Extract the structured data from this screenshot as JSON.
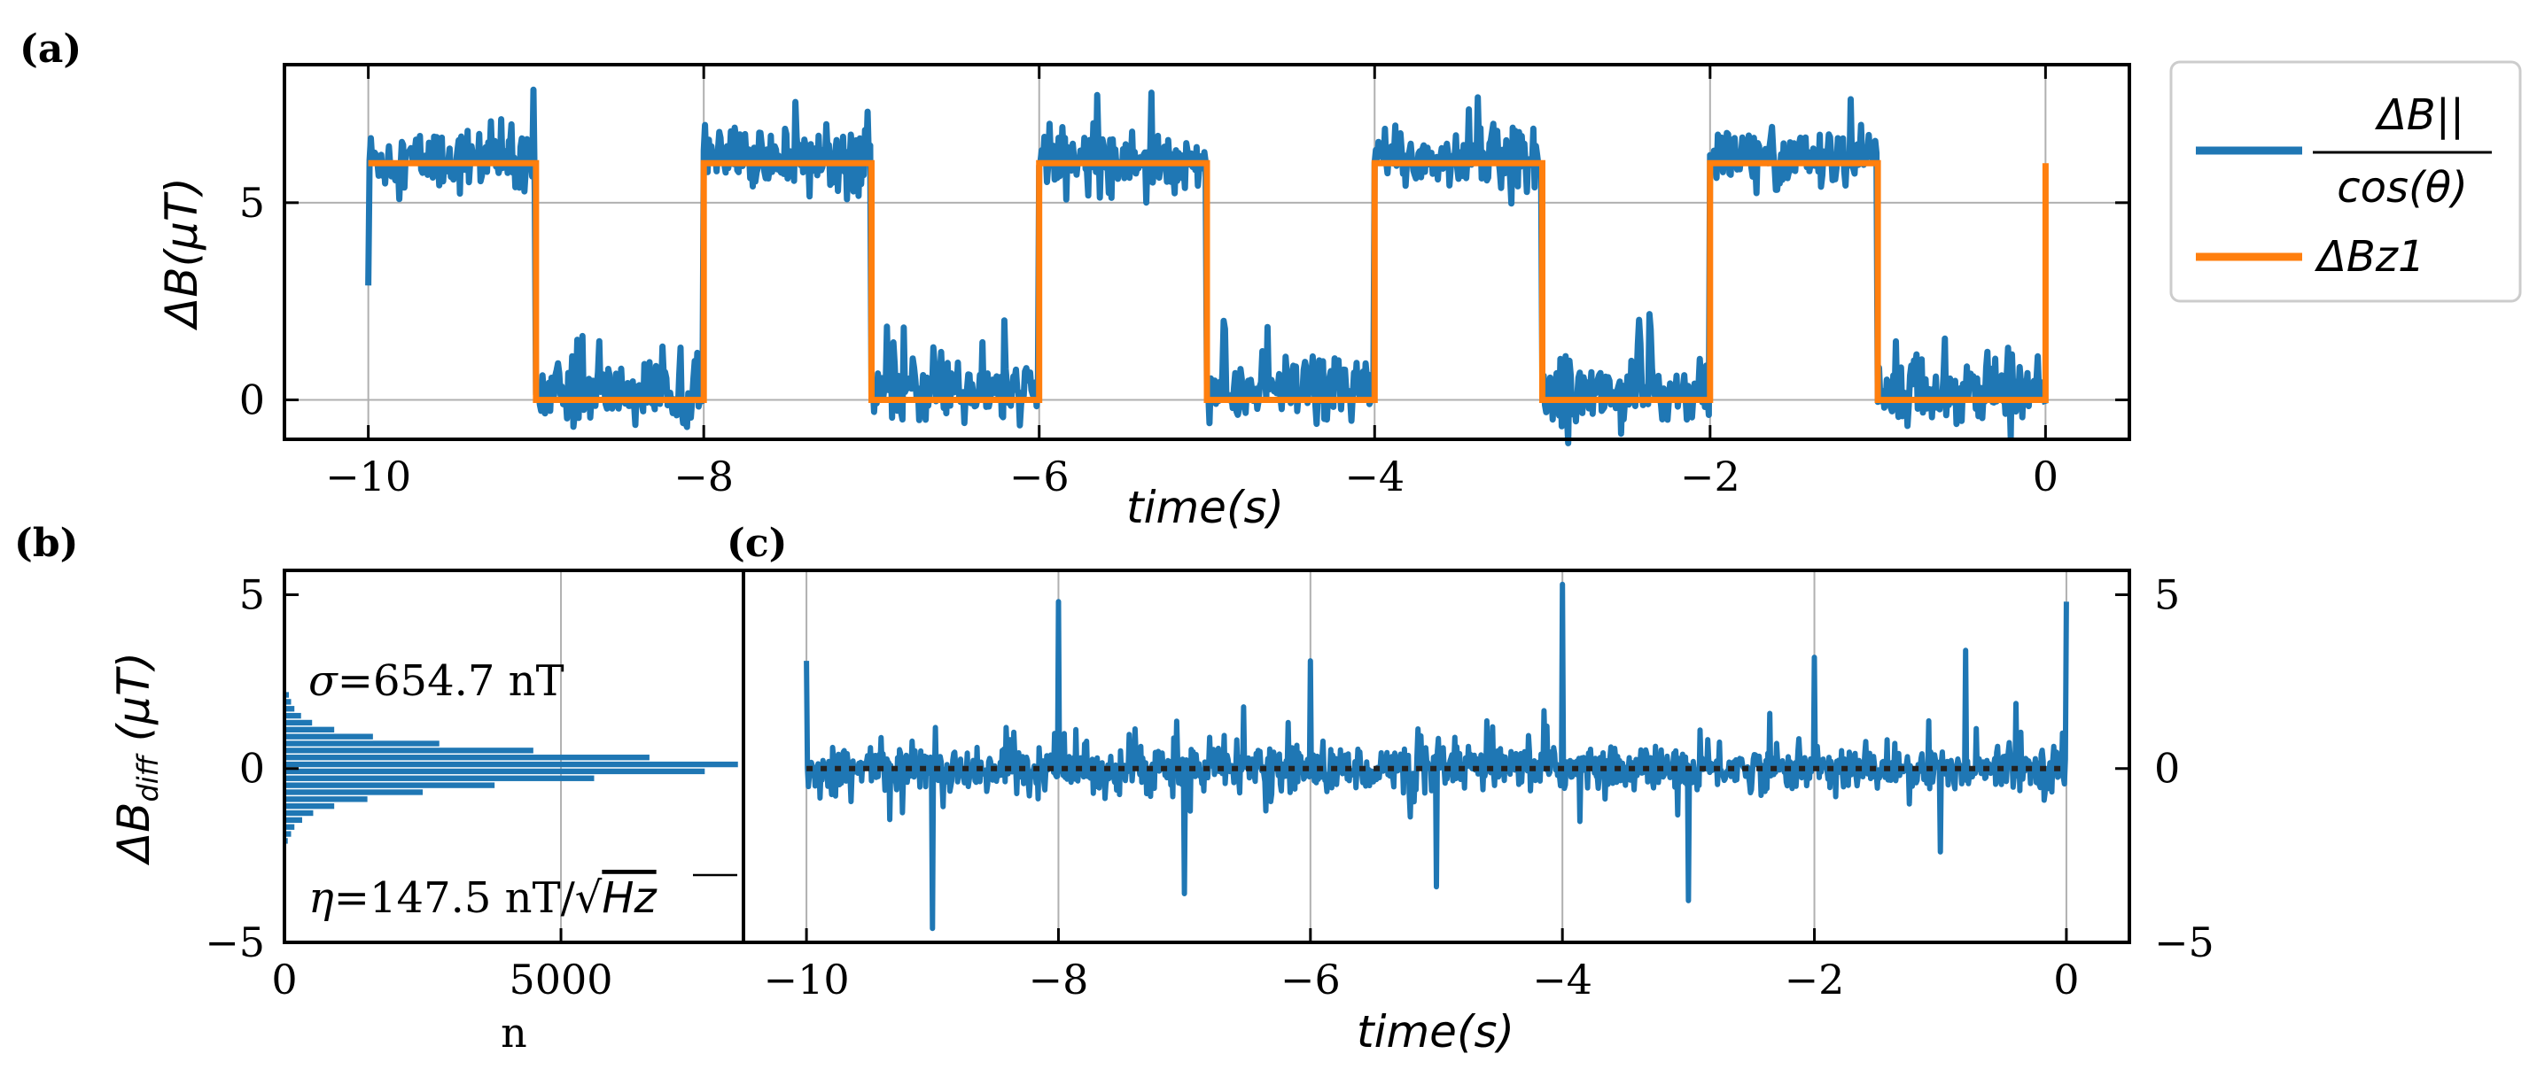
{
  "chart_data": [
    {
      "panel": "(a)",
      "type": "line",
      "xlabel": "time(s)",
      "ylabel": "ΔB(μT)",
      "xlim": [
        -10.5,
        0.5
      ],
      "ylim": [
        -1.0,
        8.5
      ],
      "xticks": [
        -10,
        -8,
        -6,
        -4,
        -2,
        0
      ],
      "xtick_labels": [
        "−10",
        "−8",
        "−6",
        "−4",
        "−2",
        "0"
      ],
      "yticks": [
        0,
        5
      ],
      "ytick_labels": [
        "0",
        "5"
      ],
      "grid": true,
      "legend": {
        "placement": "outside-right",
        "entries": [
          {
            "label_num": "ΔB||",
            "label_den": "cos(θ)",
            "color": "#1f77b4"
          },
          {
            "label": "ΔBz1",
            "color": "#ff7f0e"
          }
        ]
      },
      "series": [
        {
          "name": "ΔB|| / cos(θ)",
          "color": "#1f77b4",
          "kind": "noisy-square",
          "x_start": -10,
          "x_end": 0,
          "high": 6.1,
          "low": 0.2,
          "high_intervals": [
            [
              -10,
              -9
            ],
            [
              -8,
              -7
            ],
            [
              -6,
              -5
            ],
            [
              -4,
              -3
            ],
            [
              -2,
              -1
            ]
          ],
          "noise_sd": 0.7,
          "start_value": 2.9
        },
        {
          "name": "ΔBz1",
          "color": "#ff7f0e",
          "kind": "square",
          "x": [
            -10,
            -9,
            -9,
            -8,
            -8,
            -7,
            -7,
            -6,
            -6,
            -5,
            -5,
            -4,
            -4,
            -3,
            -3,
            -2,
            -2,
            -1,
            -1,
            0,
            0
          ],
          "y": [
            6,
            6,
            0,
            0,
            6,
            6,
            0,
            0,
            6,
            6,
            0,
            0,
            6,
            6,
            0,
            0,
            6,
            6,
            0,
            0,
            6
          ]
        }
      ]
    },
    {
      "panel": "(b)",
      "type": "histogram",
      "orientation": "horizontal",
      "xlabel": "n",
      "ylabel": "ΔBdiff (μT)",
      "xlim": [
        0,
        8300
      ],
      "ylim": [
        -5,
        5.7
      ],
      "xticks": [
        0,
        5000
      ],
      "xtick_labels": [
        "0",
        "5000"
      ],
      "yticks": [
        -5,
        0,
        5
      ],
      "ytick_labels": [
        "−5",
        "0",
        "5"
      ],
      "color": "#1f77b4",
      "bins_center": [
        -2.1,
        -1.9,
        -1.7,
        -1.5,
        -1.3,
        -1.1,
        -0.9,
        -0.7,
        -0.5,
        -0.3,
        -0.1,
        0.1,
        0.3,
        0.5,
        0.7,
        0.9,
        1.1,
        1.3,
        1.5,
        1.7,
        1.9,
        2.1
      ],
      "counts": [
        60,
        120,
        180,
        320,
        520,
        900,
        1500,
        2500,
        3800,
        5600,
        7600,
        8200,
        6600,
        4500,
        2800,
        1600,
        900,
        500,
        300,
        180,
        120,
        80
      ],
      "annotations": {
        "sigma_label": "σ",
        "sigma_value": "=654.7 nT",
        "eta_label": "η",
        "eta_value": "=147.5 nT/",
        "eta_sqrt": "Hz"
      }
    },
    {
      "panel": "(c)",
      "type": "line",
      "xlabel": "time(s)",
      "xlim": [
        -10.5,
        0.5
      ],
      "ylim": [
        -5,
        5.7
      ],
      "xticks": [
        -10,
        -8,
        -6,
        -4,
        -2,
        0
      ],
      "xtick_labels": [
        "−10",
        "−8",
        "−6",
        "−4",
        "−2",
        "0"
      ],
      "yticks": [
        -5,
        0,
        5
      ],
      "ytick_labels": [
        "−5",
        "0",
        "5"
      ],
      "yaxis_side": "right",
      "grid": true,
      "series": [
        {
          "name": "ΔBdiff",
          "color": "#1f77b4",
          "kind": "noise",
          "x_start": -10,
          "x_end": 0,
          "noise_sd": 0.55,
          "spikes": [
            {
              "x": -10.0,
              "y": 3.1
            },
            {
              "x": -9.0,
              "y": -4.6
            },
            {
              "x": -8.0,
              "y": 4.8
            },
            {
              "x": -7.0,
              "y": -3.6
            },
            {
              "x": -6.0,
              "y": 3.1
            },
            {
              "x": -5.0,
              "y": -3.4
            },
            {
              "x": -4.0,
              "y": 5.3
            },
            {
              "x": -3.0,
              "y": -3.8
            },
            {
              "x": -2.0,
              "y": 3.2
            },
            {
              "x": -1.0,
              "y": -2.4
            },
            {
              "x": -0.8,
              "y": 3.4
            },
            {
              "x": 0.0,
              "y": 4.8
            }
          ]
        },
        {
          "name": "zero reference",
          "color": "#222222",
          "kind": "dotted-hline",
          "y": 0,
          "x": [
            -10,
            0
          ]
        }
      ]
    }
  ]
}
